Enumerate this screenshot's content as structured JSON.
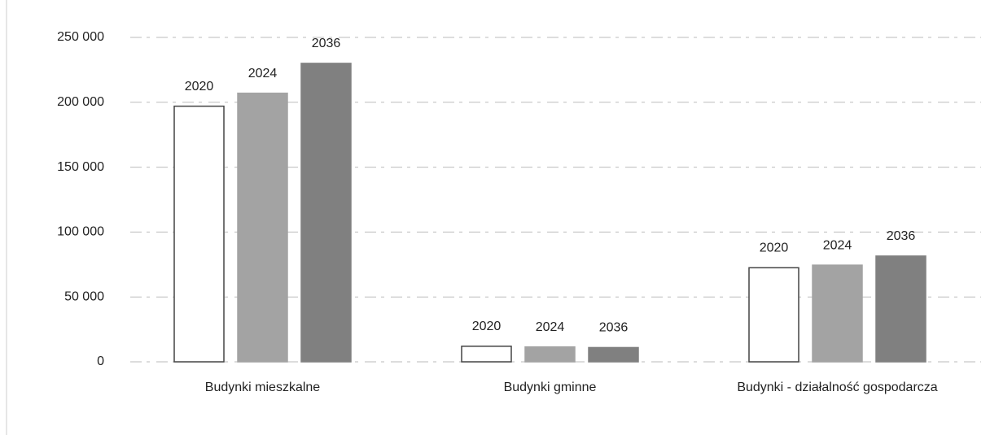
{
  "chart_data": {
    "type": "bar",
    "categories": [
      "Budynki mieszkalne",
      "Budynki gminne",
      "Budynki - działalność gospodarcza"
    ],
    "series": [
      {
        "name": "2020",
        "color": "#ffffff",
        "values": [
          197000,
          12000,
          72500
        ]
      },
      {
        "name": "2024",
        "color": "#a3a3a3",
        "values": [
          207000,
          11500,
          74500
        ]
      },
      {
        "name": "2036",
        "color": "#808080",
        "values": [
          230000,
          11000,
          81500
        ]
      }
    ],
    "ylim": [
      0,
      250000
    ],
    "yticks": [
      0,
      {
        "value": 50000,
        "label": "50 000"
      },
      {
        "value": 100000,
        "label": "100 000"
      },
      {
        "value": 150000,
        "label": "150 000"
      },
      {
        "value": 200000,
        "label": "200 000"
      },
      {
        "value": 250000,
        "label": "250 000"
      }
    ],
    "grid": true
  }
}
